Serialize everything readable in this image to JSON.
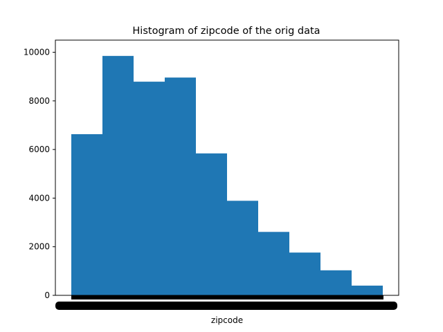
{
  "chart_data": {
    "type": "bar",
    "title": "Histogram of zipcode of the orig data",
    "xlabel": "zipcode",
    "ylabel": "",
    "ylim": [
      0,
      10500
    ],
    "y_ticks": [
      0,
      2000,
      4000,
      6000,
      8000,
      10000
    ],
    "bin_count": 10,
    "values": [
      6630,
      9850,
      8790,
      8960,
      5840,
      3890,
      2610,
      1760,
      1030,
      400
    ],
    "x_tick_labels_note": "dense overlapping tick labels render as a solid black band",
    "grid": false,
    "legend": "none",
    "bar_color": "#1f77b4"
  }
}
